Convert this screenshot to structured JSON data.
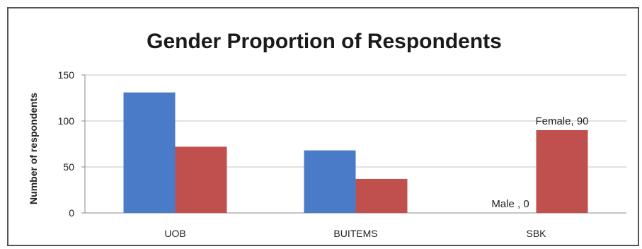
{
  "chart_data": {
    "type": "bar",
    "title": "Gender Proportion of Respondents",
    "xlabel": "",
    "ylabel": "Number of respondents",
    "categories": [
      "UOB",
      "BUITEMS",
      "SBK"
    ],
    "series": [
      {
        "name": "Male",
        "values": [
          131,
          68,
          0
        ],
        "color": "#4a7bc8"
      },
      {
        "name": "Female",
        "values": [
          72,
          37,
          90
        ],
        "color": "#c0504d"
      }
    ],
    "ylim": [
      0,
      150
    ],
    "yticks": [
      "0",
      "50",
      "100",
      "150"
    ],
    "grid": true,
    "legend": "none",
    "data_labels": [
      {
        "series": 0,
        "category": 2,
        "text": "Male , 0"
      },
      {
        "series": 1,
        "category": 2,
        "text": "Female, 90"
      }
    ]
  }
}
